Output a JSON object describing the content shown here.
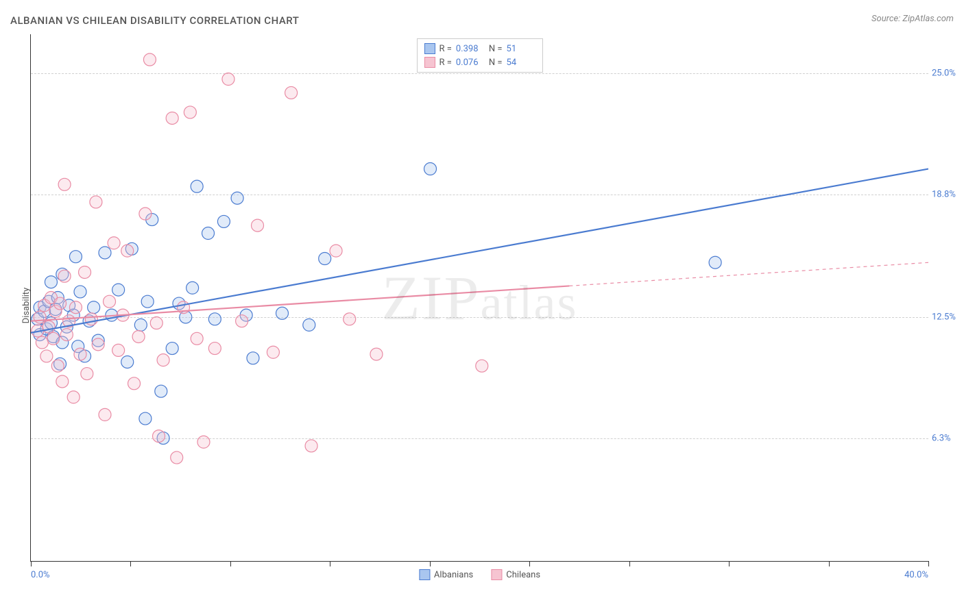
{
  "title": "ALBANIAN VS CHILEAN DISABILITY CORRELATION CHART",
  "source": "Source: ZipAtlas.com",
  "ylabel": "Disability",
  "watermark": "ZIPatlas",
  "chart": {
    "type": "scatter",
    "xlim": [
      0,
      40
    ],
    "ylim": [
      0,
      27
    ],
    "x_axis_labels": {
      "start": "0.0%",
      "end": "40.0%"
    },
    "y_grid": [
      {
        "value": 6.3,
        "label": "6.3%"
      },
      {
        "value": 12.5,
        "label": "12.5%"
      },
      {
        "value": 18.8,
        "label": "18.8%"
      },
      {
        "value": 25.0,
        "label": "25.0%"
      }
    ],
    "x_tick_positions": [
      0,
      4.44,
      8.89,
      13.33,
      17.78,
      22.22,
      26.67,
      31.11,
      35.56,
      40
    ],
    "background_color": "#ffffff",
    "grid_color": "#d0d0d0",
    "axis_color": "#333333",
    "marker_radius": 9,
    "marker_fill_opacity": 0.35,
    "marker_stroke_width": 1.2,
    "line_width": 2.2,
    "series": [
      {
        "name": "Albanians",
        "legend_label": "Albanians",
        "color_stroke": "#4a7bd0",
        "color_fill": "#a9c6ef",
        "R": "0.398",
        "N": "51",
        "trend": {
          "x1": 0,
          "y1": 11.7,
          "x2": 40,
          "y2": 20.1,
          "solid_until_x": 40
        },
        "points": [
          [
            0.3,
            12.4
          ],
          [
            0.4,
            13.0
          ],
          [
            0.4,
            11.6
          ],
          [
            0.6,
            12.8
          ],
          [
            0.7,
            11.9
          ],
          [
            0.8,
            13.3
          ],
          [
            0.9,
            12.2
          ],
          [
            0.9,
            14.3
          ],
          [
            1.0,
            11.5
          ],
          [
            1.1,
            12.9
          ],
          [
            1.2,
            13.5
          ],
          [
            1.3,
            10.1
          ],
          [
            1.4,
            11.2
          ],
          [
            1.4,
            14.7
          ],
          [
            1.6,
            12.0
          ],
          [
            1.7,
            13.1
          ],
          [
            1.9,
            12.6
          ],
          [
            2.0,
            15.6
          ],
          [
            2.1,
            11.0
          ],
          [
            2.2,
            13.8
          ],
          [
            2.4,
            10.5
          ],
          [
            2.6,
            12.3
          ],
          [
            2.8,
            13.0
          ],
          [
            3.0,
            11.3
          ],
          [
            3.3,
            15.8
          ],
          [
            3.6,
            12.6
          ],
          [
            3.9,
            13.9
          ],
          [
            4.3,
            10.2
          ],
          [
            4.5,
            16.0
          ],
          [
            4.9,
            12.1
          ],
          [
            5.2,
            13.3
          ],
          [
            5.4,
            17.5
          ],
          [
            5.8,
            8.7
          ],
          [
            5.9,
            6.3
          ],
          [
            6.3,
            10.9
          ],
          [
            6.6,
            13.2
          ],
          [
            6.9,
            12.5
          ],
          [
            7.2,
            14.0
          ],
          [
            7.4,
            19.2
          ],
          [
            7.9,
            16.8
          ],
          [
            8.2,
            12.4
          ],
          [
            8.6,
            17.4
          ],
          [
            9.2,
            18.6
          ],
          [
            9.6,
            12.6
          ],
          [
            9.9,
            10.4
          ],
          [
            11.2,
            12.7
          ],
          [
            12.4,
            12.1
          ],
          [
            13.1,
            15.5
          ],
          [
            17.8,
            20.1
          ],
          [
            30.5,
            15.3
          ],
          [
            5.1,
            7.3
          ]
        ]
      },
      {
        "name": "Chileans",
        "legend_label": "Chileans",
        "color_stroke": "#e98ba4",
        "color_fill": "#f6c4d1",
        "R": "0.076",
        "N": "54",
        "trend": {
          "x1": 0,
          "y1": 12.3,
          "x2": 40,
          "y2": 15.3,
          "solid_until_x": 24
        },
        "points": [
          [
            0.3,
            11.8
          ],
          [
            0.4,
            12.5
          ],
          [
            0.5,
            11.2
          ],
          [
            0.6,
            13.1
          ],
          [
            0.7,
            10.5
          ],
          [
            0.8,
            12.0
          ],
          [
            0.9,
            13.5
          ],
          [
            1.0,
            11.4
          ],
          [
            1.1,
            12.8
          ],
          [
            1.2,
            10.0
          ],
          [
            1.3,
            13.2
          ],
          [
            1.4,
            9.2
          ],
          [
            1.5,
            14.6
          ],
          [
            1.5,
            19.3
          ],
          [
            1.6,
            11.6
          ],
          [
            1.7,
            12.3
          ],
          [
            1.9,
            8.4
          ],
          [
            2.0,
            13.0
          ],
          [
            2.2,
            10.6
          ],
          [
            2.4,
            14.8
          ],
          [
            2.5,
            9.6
          ],
          [
            2.7,
            12.4
          ],
          [
            2.9,
            18.4
          ],
          [
            3.0,
            11.1
          ],
          [
            3.3,
            7.5
          ],
          [
            3.5,
            13.3
          ],
          [
            3.7,
            16.3
          ],
          [
            3.9,
            10.8
          ],
          [
            4.1,
            12.6
          ],
          [
            4.3,
            15.9
          ],
          [
            4.6,
            9.1
          ],
          [
            4.8,
            11.5
          ],
          [
            5.1,
            17.8
          ],
          [
            5.3,
            25.7
          ],
          [
            5.6,
            12.2
          ],
          [
            5.7,
            6.4
          ],
          [
            5.9,
            10.3
          ],
          [
            6.3,
            22.7
          ],
          [
            6.5,
            5.3
          ],
          [
            6.8,
            13.0
          ],
          [
            7.1,
            23.0
          ],
          [
            7.4,
            11.4
          ],
          [
            7.7,
            6.1
          ],
          [
            8.2,
            10.9
          ],
          [
            8.8,
            24.7
          ],
          [
            9.4,
            12.3
          ],
          [
            10.1,
            17.2
          ],
          [
            10.8,
            10.7
          ],
          [
            11.6,
            24.0
          ],
          [
            12.5,
            5.9
          ],
          [
            13.6,
            15.9
          ],
          [
            14.2,
            12.4
          ],
          [
            15.4,
            10.6
          ],
          [
            20.1,
            10.0
          ]
        ]
      }
    ]
  },
  "legend_bottom": [
    {
      "label": "Albanians",
      "fill": "#a9c6ef",
      "stroke": "#4a7bd0"
    },
    {
      "label": "Chileans",
      "fill": "#f6c4d1",
      "stroke": "#e98ba4"
    }
  ]
}
